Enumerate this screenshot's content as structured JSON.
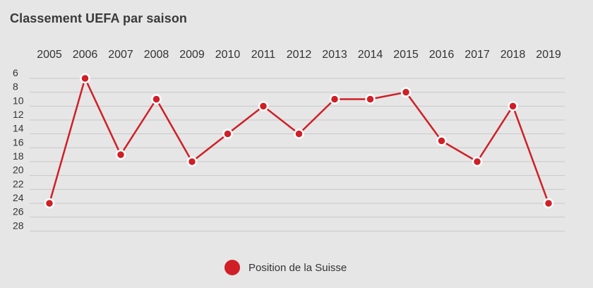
{
  "chart_data": {
    "type": "line",
    "title": "Classement UEFA par saison",
    "x": [
      "2005",
      "2006",
      "2007",
      "2008",
      "2009",
      "2010",
      "2011",
      "2012",
      "2013",
      "2014",
      "2015",
      "2016",
      "2017",
      "2018",
      "2019"
    ],
    "series": [
      {
        "name": "Position de la Suisse",
        "values": [
          24,
          6,
          17,
          9,
          18,
          14,
          10,
          14,
          9,
          9,
          8,
          15,
          18,
          10,
          24
        ]
      }
    ],
    "y_ticks": [
      6,
      8,
      10,
      12,
      14,
      16,
      18,
      20,
      22,
      24,
      26,
      28
    ],
    "ylim": [
      4,
      28
    ],
    "y_inverted": true,
    "x_axis_position": "top",
    "grid": true,
    "legend_position": "bottom",
    "colors": {
      "line": "#d01f26",
      "grid": "#c8c8c8",
      "background": "#e6e6e6"
    }
  }
}
